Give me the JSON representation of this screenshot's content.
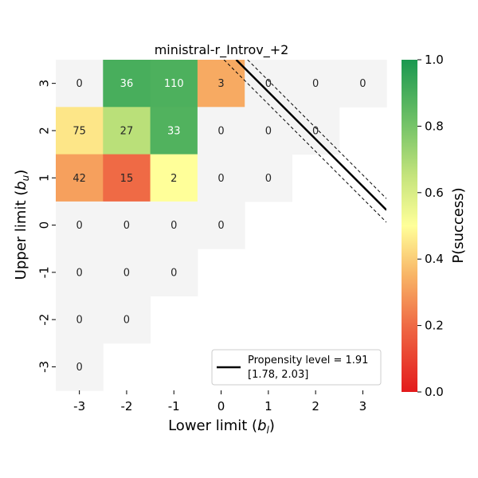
{
  "chart_data": {
    "type": "heatmap",
    "title": "ministral-r_Introv_+2",
    "xlabel": "Lower limit (b_l)",
    "ylabel": "Upper limit (b_u)",
    "x_ticks": [
      "-3",
      "-2",
      "-1",
      "0",
      "1",
      "2",
      "3"
    ],
    "y_ticks": [
      "3",
      "2",
      "1",
      "0",
      "-1",
      "-2",
      "-3"
    ],
    "cells": [
      {
        "bl": -3,
        "bu": 3,
        "count": "0",
        "p": null
      },
      {
        "bl": -2,
        "bu": 3,
        "count": "36",
        "p": 0.9
      },
      {
        "bl": -1,
        "bu": 3,
        "count": "110",
        "p": 0.89
      },
      {
        "bl": 0,
        "bu": 3,
        "count": "3",
        "p": 0.33
      },
      {
        "bl": 1,
        "bu": 3,
        "count": "0",
        "p": null
      },
      {
        "bl": 2,
        "bu": 3,
        "count": "0",
        "p": null
      },
      {
        "bl": 3,
        "bu": 3,
        "count": "0",
        "p": null
      },
      {
        "bl": -3,
        "bu": 2,
        "count": "75",
        "p": 0.45
      },
      {
        "bl": -2,
        "bu": 2,
        "count": "27",
        "p": 0.67
      },
      {
        "bl": -1,
        "bu": 2,
        "count": "33",
        "p": 0.88
      },
      {
        "bl": 0,
        "bu": 2,
        "count": "0",
        "p": null
      },
      {
        "bl": 1,
        "bu": 2,
        "count": "0",
        "p": null
      },
      {
        "bl": 2,
        "bu": 2,
        "count": "0",
        "p": null
      },
      {
        "bl": -3,
        "bu": 1,
        "count": "42",
        "p": 0.31
      },
      {
        "bl": -2,
        "bu": 1,
        "count": "15",
        "p": 0.2
      },
      {
        "bl": -1,
        "bu": 1,
        "count": "2",
        "p": 0.5
      },
      {
        "bl": 0,
        "bu": 1,
        "count": "0",
        "p": null
      },
      {
        "bl": 1,
        "bu": 1,
        "count": "0",
        "p": null
      },
      {
        "bl": -3,
        "bu": 0,
        "count": "0",
        "p": null
      },
      {
        "bl": -2,
        "bu": 0,
        "count": "0",
        "p": null
      },
      {
        "bl": -1,
        "bu": 0,
        "count": "0",
        "p": null
      },
      {
        "bl": 0,
        "bu": 0,
        "count": "0",
        "p": null
      },
      {
        "bl": -3,
        "bu": -1,
        "count": "0",
        "p": null
      },
      {
        "bl": -2,
        "bu": -1,
        "count": "0",
        "p": null
      },
      {
        "bl": -1,
        "bu": -1,
        "count": "0",
        "p": null
      },
      {
        "bl": -3,
        "bu": -2,
        "count": "0",
        "p": null
      },
      {
        "bl": -2,
        "bu": -2,
        "count": "0",
        "p": null
      },
      {
        "bl": -3,
        "bu": -3,
        "count": "0",
        "p": null
      }
    ],
    "propensity_line": {
      "level": 1.91,
      "ci": [
        1.78,
        2.03
      ]
    },
    "legend": {
      "line1": "Propensity level = 1.91",
      "line2": "[1.78, 2.03]",
      "position": "lower-right"
    },
    "colorbar": {
      "label": "P(success)",
      "range": [
        0.0,
        1.0
      ],
      "ticks": [
        "0.0",
        "0.2",
        "0.4",
        "0.6",
        "0.8",
        "1.0"
      ]
    },
    "colors": {
      "empty": "#f4f4f4",
      "low": "#e31a1c",
      "mid": "#ffff99",
      "high": "#1a9850"
    }
  }
}
